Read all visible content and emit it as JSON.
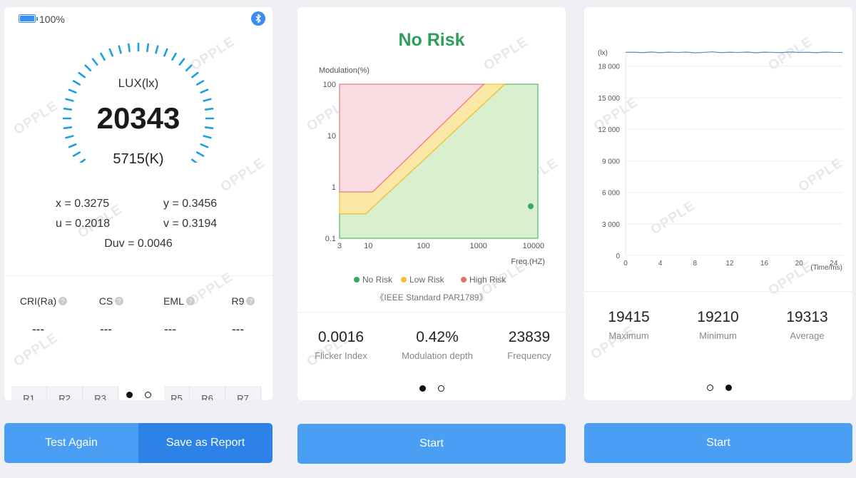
{
  "panel1": {
    "battery_text": "100%",
    "bluetooth_icon": "bluetooth-icon",
    "gauge": {
      "label": "LUX(lx)",
      "value": "20343",
      "cct": "5715(K)"
    },
    "coords": {
      "x": "x = 0.3275",
      "y": "y = 0.3456",
      "u": "u = 0.2018",
      "v": "v = 0.3194",
      "duv": "Duv = 0.0046"
    },
    "metrics": [
      {
        "label": "CRI(Ra)",
        "value": "---"
      },
      {
        "label": "CS",
        "value": "---"
      },
      {
        "label": "EML",
        "value": "---"
      },
      {
        "label": "R9",
        "value": "---"
      }
    ],
    "r_tabs": [
      "R1",
      "R2",
      "R3",
      "R5",
      "R6",
      "R7"
    ],
    "test_again_label": "Test Again",
    "save_report_label": "Save as Report",
    "watermark": "OPPLE"
  },
  "panel2": {
    "status": "No Risk",
    "status_color": "#2e9e5b",
    "chart_data": {
      "type": "scatter",
      "ylabel": "Modulation(%)",
      "xlabel": "Freq.(HZ)",
      "x_ticks": [
        "3",
        "10",
        "100",
        "1000",
        "10000"
      ],
      "y_ticks": [
        "100",
        "10",
        "1",
        "0.1"
      ],
      "xlim": [
        3,
        12000
      ],
      "ylim": [
        0.1,
        100
      ],
      "log_scale": true,
      "legend": [
        "No Risk",
        "Low Risk",
        "High Risk"
      ],
      "legend_colors": [
        "#34a86a",
        "#f2c230",
        "#e8716d"
      ],
      "legend_placement": "bottom",
      "point": {
        "x": 12000,
        "y": 0.42
      },
      "standard": "《IEEE Standard PAR1789》"
    },
    "stats": [
      {
        "value": "0.0016",
        "label": "Flicker Index"
      },
      {
        "value": "0.42%",
        "label": "Modulation depth"
      },
      {
        "value": "23839",
        "label": "Frequency"
      }
    ],
    "start_label": "Start"
  },
  "panel3": {
    "chart_data": {
      "type": "line",
      "ylabel": "(lx)",
      "xlabel": "(Time/ms)",
      "y_ticks": [
        "18 000",
        "15 000",
        "12 000",
        "9 000",
        "6 000",
        "3 000",
        "0"
      ],
      "x_ticks": [
        "0",
        "4",
        "8",
        "12",
        "16",
        "20",
        "24"
      ],
      "ylim": [
        0,
        19000
      ],
      "xlim": [
        0,
        25
      ],
      "series": [
        {
          "values": [
            19313,
            19320,
            19290,
            19350,
            19280,
            19330,
            19300,
            19340,
            19270,
            19310,
            19360,
            19290,
            19320,
            19300,
            19340,
            19280,
            19330,
            19310,
            19290,
            19350,
            19300,
            19320,
            19280,
            19340,
            19310,
            19300
          ]
        }
      ],
      "line_color": "#4f8fc9"
    },
    "stats": [
      {
        "value": "19415",
        "label": "Maximum"
      },
      {
        "value": "19210",
        "label": "Minimum"
      },
      {
        "value": "19313",
        "label": "Average"
      }
    ],
    "start_label": "Start"
  }
}
